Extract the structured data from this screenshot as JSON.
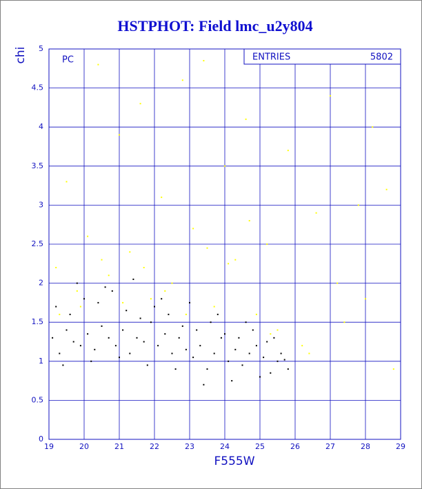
{
  "chart_data": {
    "type": "scatter",
    "title": "HSTPHOT: Field lmc_u2y804",
    "x_label": "F555W",
    "y_label": "chi",
    "annotation": "PC",
    "stats": {
      "label": "ENTRIES",
      "value": 5802
    },
    "xlim": [
      19,
      29
    ],
    "xticks": [
      19,
      20,
      21,
      22,
      23,
      24,
      25,
      26,
      27,
      28,
      29
    ],
    "ylim": [
      0,
      5
    ],
    "yticks": [
      0,
      0.5,
      1,
      1.5,
      2,
      2.5,
      3,
      3.5,
      4,
      4.5,
      5
    ],
    "grid": true,
    "series": [
      {
        "color": "#000000",
        "x": [
          19.1,
          19.3,
          19.5,
          19.7,
          19.9,
          20.1,
          20.3,
          20.5,
          20.7,
          20.9,
          21.1,
          21.3,
          21.5,
          21.7,
          21.9,
          22.1,
          22.3,
          22.5,
          22.7,
          22.9,
          23.1,
          23.3,
          23.5,
          23.7,
          23.9,
          24.1,
          24.3,
          24.5,
          24.7,
          24.9,
          25.1,
          25.3,
          25.5,
          25.7,
          19.2,
          19.6,
          20.0,
          20.4,
          20.8,
          21.2,
          21.6,
          22.0,
          22.4,
          22.8,
          23.2,
          23.6,
          24.0,
          24.4,
          24.8,
          25.2,
          25.6,
          19.4,
          20.2,
          21.0,
          21.8,
          22.6,
          23.4,
          24.2,
          25.0,
          25.8,
          19.8,
          20.6,
          21.4,
          22.2,
          23.0,
          23.8,
          24.6,
          25.4
        ],
        "values": [
          1.3,
          1.1,
          1.4,
          1.25,
          1.2,
          1.35,
          1.15,
          1.45,
          1.3,
          1.2,
          1.4,
          1.1,
          1.3,
          1.25,
          1.5,
          1.2,
          1.35,
          1.1,
          1.3,
          1.15,
          1.05,
          1.2,
          0.9,
          1.1,
          1.3,
          1.0,
          1.15,
          0.95,
          1.1,
          1.2,
          1.05,
          0.85,
          1.0,
          1.02,
          1.7,
          1.6,
          1.8,
          1.75,
          1.9,
          1.65,
          1.55,
          1.7,
          1.6,
          1.45,
          1.4,
          1.5,
          1.35,
          1.3,
          1.4,
          1.25,
          1.1,
          0.95,
          1.0,
          1.05,
          0.95,
          0.9,
          0.7,
          0.75,
          0.8,
          0.9,
          2.0,
          1.95,
          2.05,
          1.8,
          1.75,
          1.6,
          1.5,
          1.3
        ]
      },
      {
        "color": "#ffff00",
        "x": [
          19.2,
          19.5,
          19.8,
          20.1,
          20.4,
          20.7,
          21.0,
          21.3,
          21.6,
          21.9,
          22.2,
          22.5,
          22.8,
          23.1,
          23.4,
          23.7,
          24.0,
          24.3,
          24.6,
          24.9,
          25.2,
          25.5,
          25.8,
          26.2,
          26.6,
          27.0,
          27.4,
          27.8,
          28.2,
          28.6,
          19.3,
          19.9,
          20.5,
          21.1,
          21.7,
          22.3,
          22.9,
          23.5,
          24.1,
          24.7,
          25.3,
          26.4,
          27.2,
          28.0,
          28.8
        ],
        "values": [
          2.2,
          3.3,
          1.9,
          2.6,
          4.8,
          2.1,
          3.9,
          2.4,
          4.3,
          1.8,
          3.1,
          2.0,
          4.6,
          2.7,
          4.85,
          1.7,
          3.5,
          2.3,
          4.1,
          1.6,
          2.5,
          1.4,
          3.7,
          1.2,
          2.9,
          4.4,
          1.5,
          3.0,
          4.0,
          3.2,
          1.6,
          1.7,
          2.3,
          1.75,
          2.2,
          1.9,
          1.6,
          2.45,
          2.25,
          2.8,
          1.35,
          1.1,
          2.0,
          1.8,
          0.9
        ]
      }
    ]
  }
}
